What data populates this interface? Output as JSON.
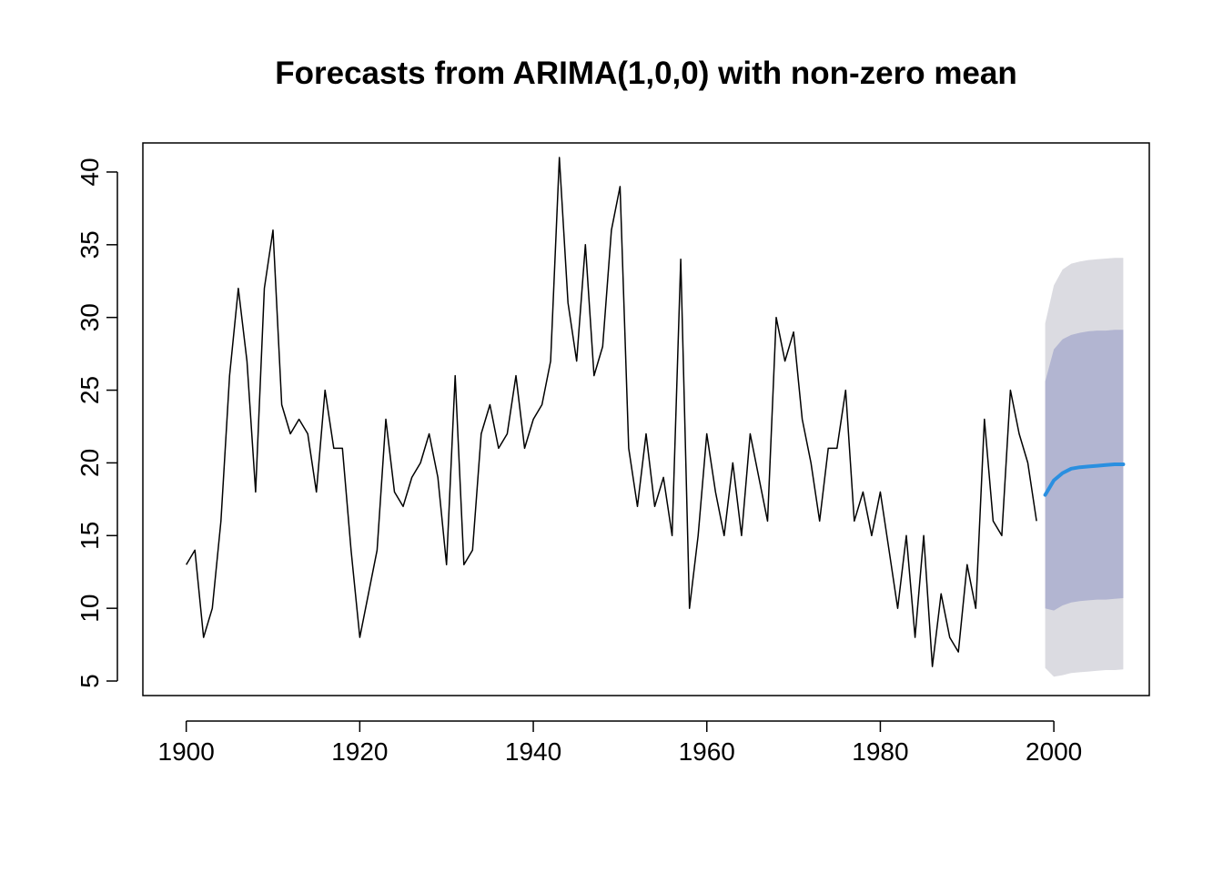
{
  "chart_data": {
    "type": "line",
    "title": "Forecasts from ARIMA(1,0,0) with non-zero mean",
    "xlabel": "",
    "ylabel": "",
    "xlim": [
      1895,
      2011
    ],
    "ylim": [
      4,
      42
    ],
    "x_ticks": [
      1900,
      1920,
      1940,
      1960,
      1980,
      2000
    ],
    "y_ticks": [
      5,
      10,
      15,
      20,
      25,
      30,
      35,
      40
    ],
    "grid": false,
    "legend": "none",
    "observed": {
      "x": [
        1900,
        1901,
        1902,
        1903,
        1904,
        1905,
        1906,
        1907,
        1908,
        1909,
        1910,
        1911,
        1912,
        1913,
        1914,
        1915,
        1916,
        1917,
        1918,
        1919,
        1920,
        1921,
        1922,
        1923,
        1924,
        1925,
        1926,
        1927,
        1928,
        1929,
        1930,
        1931,
        1932,
        1933,
        1934,
        1935,
        1936,
        1937,
        1938,
        1939,
        1940,
        1941,
        1942,
        1943,
        1944,
        1945,
        1946,
        1947,
        1948,
        1949,
        1950,
        1951,
        1952,
        1953,
        1954,
        1955,
        1956,
        1957,
        1958,
        1959,
        1960,
        1961,
        1962,
        1963,
        1964,
        1965,
        1966,
        1967,
        1968,
        1969,
        1970,
        1971,
        1972,
        1973,
        1974,
        1975,
        1976,
        1977,
        1978,
        1979,
        1980,
        1981,
        1982,
        1983,
        1984,
        1985,
        1986,
        1987,
        1988,
        1989,
        1990,
        1991,
        1992,
        1993,
        1994,
        1995,
        1996,
        1997,
        1998
      ],
      "values": [
        13,
        14,
        8,
        10,
        16,
        26,
        32,
        27,
        18,
        32,
        36,
        24,
        22,
        23,
        22,
        18,
        25,
        21,
        21,
        14,
        8,
        11,
        14,
        23,
        18,
        17,
        19,
        20,
        22,
        19,
        13,
        26,
        13,
        14,
        22,
        24,
        21,
        22,
        26,
        21,
        23,
        24,
        27,
        41,
        31,
        27,
        35,
        26,
        28,
        36,
        39,
        21,
        17,
        22,
        17,
        19,
        15,
        34,
        10,
        15,
        22,
        18,
        15,
        20,
        15,
        22,
        19,
        16,
        30,
        27,
        29,
        23,
        20,
        16,
        21,
        21,
        25,
        16,
        18,
        15,
        18,
        14,
        10,
        15,
        8,
        15,
        6,
        11,
        8,
        7,
        13,
        10,
        23,
        16,
        15,
        25,
        22,
        20,
        16
      ],
      "color": "#000000"
    },
    "forecast": {
      "x": [
        1999,
        2000,
        2001,
        2002,
        2003,
        2004,
        2005,
        2006,
        2007,
        2008
      ],
      "mean": [
        17.8,
        18.8,
        19.3,
        19.6,
        19.7,
        19.75,
        19.8,
        19.85,
        19.9,
        19.9
      ],
      "lo80": [
        10.0,
        9.85,
        10.2,
        10.4,
        10.5,
        10.55,
        10.6,
        10.6,
        10.65,
        10.7
      ],
      "hi80": [
        25.6,
        27.8,
        28.5,
        28.8,
        28.95,
        29.05,
        29.1,
        29.1,
        29.15,
        29.15
      ],
      "lo95": [
        5.9,
        5.3,
        5.4,
        5.55,
        5.6,
        5.65,
        5.7,
        5.75,
        5.75,
        5.8
      ],
      "hi95": [
        29.6,
        32.2,
        33.3,
        33.7,
        33.85,
        33.95,
        34.0,
        34.05,
        34.1,
        34.1
      ],
      "mean_color": "#2A8FE0",
      "band80_color": "#B2B5D1",
      "band95_color": "#DBDBE1"
    }
  }
}
